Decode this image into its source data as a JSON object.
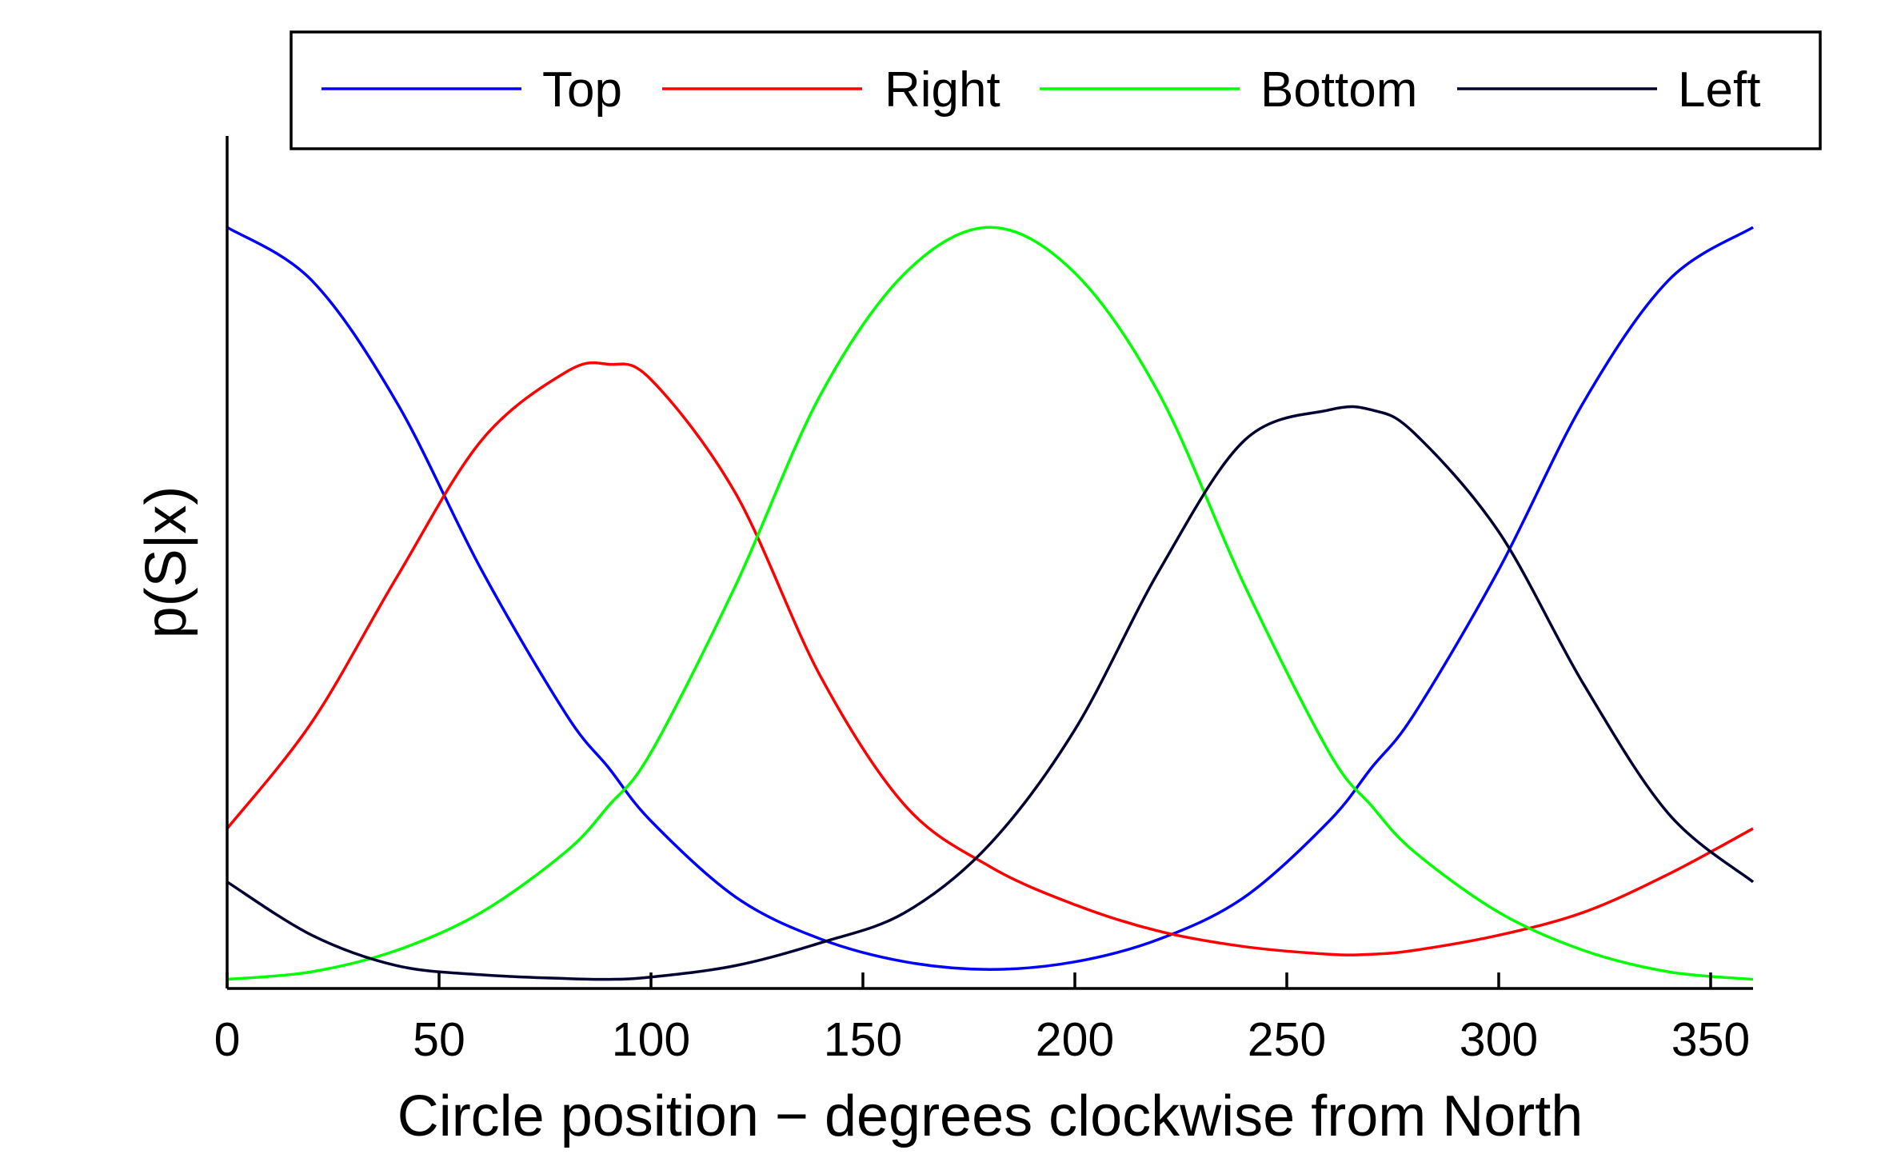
{
  "chart_data": {
    "type": "line",
    "title": "",
    "xlabel": "Circle position − degrees clockwise from North",
    "ylabel": "p(S|x)",
    "xlim": [
      0,
      360
    ],
    "ylim": [
      0,
      1.12
    ],
    "x_ticks": [
      0,
      50,
      100,
      150,
      200,
      250,
      300,
      350
    ],
    "x_tick_labels": [
      "0",
      "50",
      "100",
      "150",
      "200",
      "250",
      "300",
      "350"
    ],
    "y_ticks_shown": false,
    "grid": false,
    "legend_position": "top",
    "legend_frame": true,
    "series": [
      {
        "name": "Top",
        "color": "#0000ff",
        "x": [
          0,
          20,
          40,
          60,
          80,
          90,
          100,
          120,
          140,
          160,
          180,
          200,
          220,
          240,
          260,
          270,
          280,
          300,
          320,
          340,
          360
        ],
        "y": [
          1.0,
          0.93,
          0.77,
          0.55,
          0.36,
          0.29,
          0.22,
          0.12,
          0.065,
          0.035,
          0.025,
          0.035,
          0.065,
          0.12,
          0.22,
          0.29,
          0.36,
          0.55,
          0.77,
          0.93,
          1.0
        ]
      },
      {
        "name": "Right",
        "color": "#ff0000",
        "x": [
          0,
          20,
          40,
          60,
          80,
          90,
          100,
          120,
          140,
          160,
          180,
          200,
          220,
          240,
          260,
          270,
          280,
          300,
          320,
          340,
          360
        ],
        "y": [
          0.21,
          0.35,
          0.54,
          0.72,
          0.81,
          0.82,
          0.8,
          0.65,
          0.41,
          0.24,
          0.16,
          0.11,
          0.075,
          0.055,
          0.045,
          0.045,
          0.05,
          0.07,
          0.1,
          0.15,
          0.21
        ]
      },
      {
        "name": "Bottom",
        "color": "#00ff00",
        "x": [
          0,
          20,
          40,
          60,
          80,
          90,
          100,
          120,
          140,
          160,
          180,
          200,
          220,
          240,
          260,
          270,
          280,
          300,
          320,
          340,
          360
        ],
        "y": [
          0.012,
          0.022,
          0.05,
          0.1,
          0.18,
          0.24,
          0.31,
          0.53,
          0.78,
          0.94,
          1.0,
          0.94,
          0.78,
          0.53,
          0.31,
          0.24,
          0.18,
          0.1,
          0.05,
          0.022,
          0.012
        ]
      },
      {
        "name": "Left",
        "color": "#000033",
        "x": [
          0,
          20,
          40,
          60,
          80,
          90,
          100,
          120,
          140,
          160,
          180,
          200,
          220,
          240,
          260,
          270,
          280,
          300,
          320,
          340,
          360
        ],
        "y": [
          0.14,
          0.07,
          0.03,
          0.018,
          0.013,
          0.012,
          0.015,
          0.03,
          0.06,
          0.1,
          0.19,
          0.34,
          0.55,
          0.72,
          0.76,
          0.76,
          0.73,
          0.6,
          0.4,
          0.23,
          0.14
        ]
      }
    ]
  }
}
